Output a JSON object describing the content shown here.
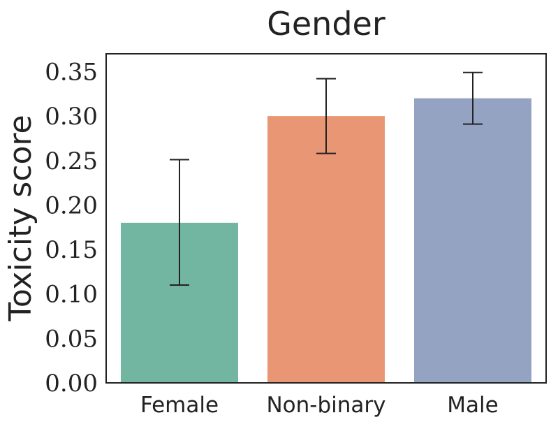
{
  "chart_data": {
    "type": "bar",
    "title": "Gender",
    "xlabel": "",
    "ylabel": "Toxicity score",
    "categories": [
      "Female",
      "Non-binary",
      "Male"
    ],
    "values": [
      0.18,
      0.3,
      0.32
    ],
    "error_low": [
      0.11,
      0.258,
      0.291
    ],
    "error_high": [
      0.251,
      0.342,
      0.349
    ],
    "colors": [
      "#72b6a1",
      "#e99675",
      "#95a3c3"
    ],
    "ylim": [
      0,
      0.37
    ],
    "yticks": [
      "0.00",
      "0.05",
      "0.10",
      "0.15",
      "0.20",
      "0.25",
      "0.30",
      "0.35"
    ],
    "ytick_values": [
      0,
      0.05,
      0.1,
      0.15,
      0.2,
      0.25,
      0.3,
      0.35
    ],
    "grid": false
  }
}
